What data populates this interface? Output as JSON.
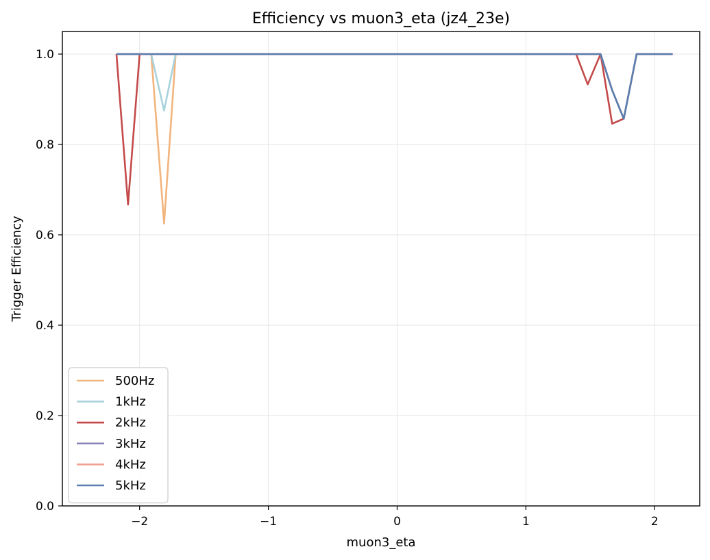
{
  "chart_data": {
    "type": "line",
    "title": "Efficiency vs muon3_eta (jz4_23e)",
    "xlabel": "muon3_eta",
    "ylabel": "Trigger Efficiency",
    "xlim": [
      -2.6,
      2.35
    ],
    "ylim": [
      0.0,
      1.05
    ],
    "xticks": [
      -2,
      -1,
      0,
      1,
      2
    ],
    "xtick_labels": [
      "−2",
      "−1",
      "0",
      "1",
      "2"
    ],
    "yticks": [
      0.0,
      0.2,
      0.4,
      0.6,
      0.8,
      1.0
    ],
    "ytick_labels": [
      "0.0",
      "0.2",
      "0.4",
      "0.6",
      "0.8",
      "1.0"
    ],
    "grid": true,
    "legend_position": "lower-left",
    "x": [
      -2.18,
      -2.09,
      -2.0,
      -1.91,
      -1.81,
      -1.72,
      -1.63,
      -1.53,
      -1.44,
      -1.35,
      -1.25,
      -1.16,
      -1.07,
      -0.97,
      -0.88,
      -0.79,
      -0.69,
      -0.6,
      -0.51,
      -0.41,
      -0.32,
      -0.23,
      -0.13,
      -0.04,
      0.05,
      0.15,
      0.24,
      0.33,
      0.43,
      0.52,
      0.61,
      0.71,
      0.8,
      0.89,
      0.99,
      1.08,
      1.17,
      1.27,
      1.36,
      1.39,
      1.48,
      1.58,
      1.67,
      1.76,
      1.86,
      1.95,
      2.05,
      2.14
    ],
    "series": [
      {
        "name": "500Hz",
        "color": "#f2b47d",
        "values": [
          1.0,
          1.0,
          1.0,
          1.0,
          0.625,
          1.0,
          1.0,
          1.0,
          1.0,
          1.0,
          1.0,
          1.0,
          1.0,
          1.0,
          1.0,
          1.0,
          1.0,
          1.0,
          1.0,
          1.0,
          1.0,
          1.0,
          1.0,
          1.0,
          1.0,
          1.0,
          1.0,
          1.0,
          1.0,
          1.0,
          1.0,
          1.0,
          1.0,
          1.0,
          1.0,
          1.0,
          1.0,
          1.0,
          1.0,
          1.0,
          1.0,
          1.0,
          0.92,
          0.857,
          1.0,
          1.0,
          1.0,
          1.0
        ]
      },
      {
        "name": "1kHz",
        "color": "#a8d2dc",
        "values": [
          1.0,
          1.0,
          1.0,
          1.0,
          0.875,
          1.0,
          1.0,
          1.0,
          1.0,
          1.0,
          1.0,
          1.0,
          1.0,
          1.0,
          1.0,
          1.0,
          1.0,
          1.0,
          1.0,
          1.0,
          1.0,
          1.0,
          1.0,
          1.0,
          1.0,
          1.0,
          1.0,
          1.0,
          1.0,
          1.0,
          1.0,
          1.0,
          1.0,
          1.0,
          1.0,
          1.0,
          1.0,
          1.0,
          1.0,
          1.0,
          1.0,
          1.0,
          0.92,
          0.857,
          1.0,
          1.0,
          1.0,
          1.0
        ]
      },
      {
        "name": "2kHz",
        "color": "#c44a4a",
        "values": [
          1.0,
          0.667,
          1.0,
          1.0,
          1.0,
          1.0,
          1.0,
          1.0,
          1.0,
          1.0,
          1.0,
          1.0,
          1.0,
          1.0,
          1.0,
          1.0,
          1.0,
          1.0,
          1.0,
          1.0,
          1.0,
          1.0,
          1.0,
          1.0,
          1.0,
          1.0,
          1.0,
          1.0,
          1.0,
          1.0,
          1.0,
          1.0,
          1.0,
          1.0,
          1.0,
          1.0,
          1.0,
          1.0,
          1.0,
          1.0,
          0.933,
          1.0,
          0.846,
          0.857,
          1.0,
          1.0,
          1.0,
          1.0
        ]
      },
      {
        "name": "3kHz",
        "color": "#8a86b8",
        "values": [
          1.0,
          1.0,
          1.0,
          1.0,
          1.0,
          1.0,
          1.0,
          1.0,
          1.0,
          1.0,
          1.0,
          1.0,
          1.0,
          1.0,
          1.0,
          1.0,
          1.0,
          1.0,
          1.0,
          1.0,
          1.0,
          1.0,
          1.0,
          1.0,
          1.0,
          1.0,
          1.0,
          1.0,
          1.0,
          1.0,
          1.0,
          1.0,
          1.0,
          1.0,
          1.0,
          1.0,
          1.0,
          1.0,
          1.0,
          1.0,
          1.0,
          1.0,
          0.92,
          0.857,
          1.0,
          1.0,
          1.0,
          1.0
        ]
      },
      {
        "name": "4kHz",
        "color": "#f2a090",
        "values": [
          1.0,
          1.0,
          1.0,
          1.0,
          1.0,
          1.0,
          1.0,
          1.0,
          1.0,
          1.0,
          1.0,
          1.0,
          1.0,
          1.0,
          1.0,
          1.0,
          1.0,
          1.0,
          1.0,
          1.0,
          1.0,
          1.0,
          1.0,
          1.0,
          1.0,
          1.0,
          1.0,
          1.0,
          1.0,
          1.0,
          1.0,
          1.0,
          1.0,
          1.0,
          1.0,
          1.0,
          1.0,
          1.0,
          1.0,
          1.0,
          1.0,
          1.0,
          0.92,
          0.857,
          1.0,
          1.0,
          1.0,
          1.0
        ]
      },
      {
        "name": "5kHz",
        "color": "#5a7fb0",
        "values": [
          1.0,
          1.0,
          1.0,
          1.0,
          1.0,
          1.0,
          1.0,
          1.0,
          1.0,
          1.0,
          1.0,
          1.0,
          1.0,
          1.0,
          1.0,
          1.0,
          1.0,
          1.0,
          1.0,
          1.0,
          1.0,
          1.0,
          1.0,
          1.0,
          1.0,
          1.0,
          1.0,
          1.0,
          1.0,
          1.0,
          1.0,
          1.0,
          1.0,
          1.0,
          1.0,
          1.0,
          1.0,
          1.0,
          1.0,
          1.0,
          1.0,
          1.0,
          0.92,
          0.857,
          1.0,
          1.0,
          1.0,
          1.0
        ]
      }
    ]
  }
}
